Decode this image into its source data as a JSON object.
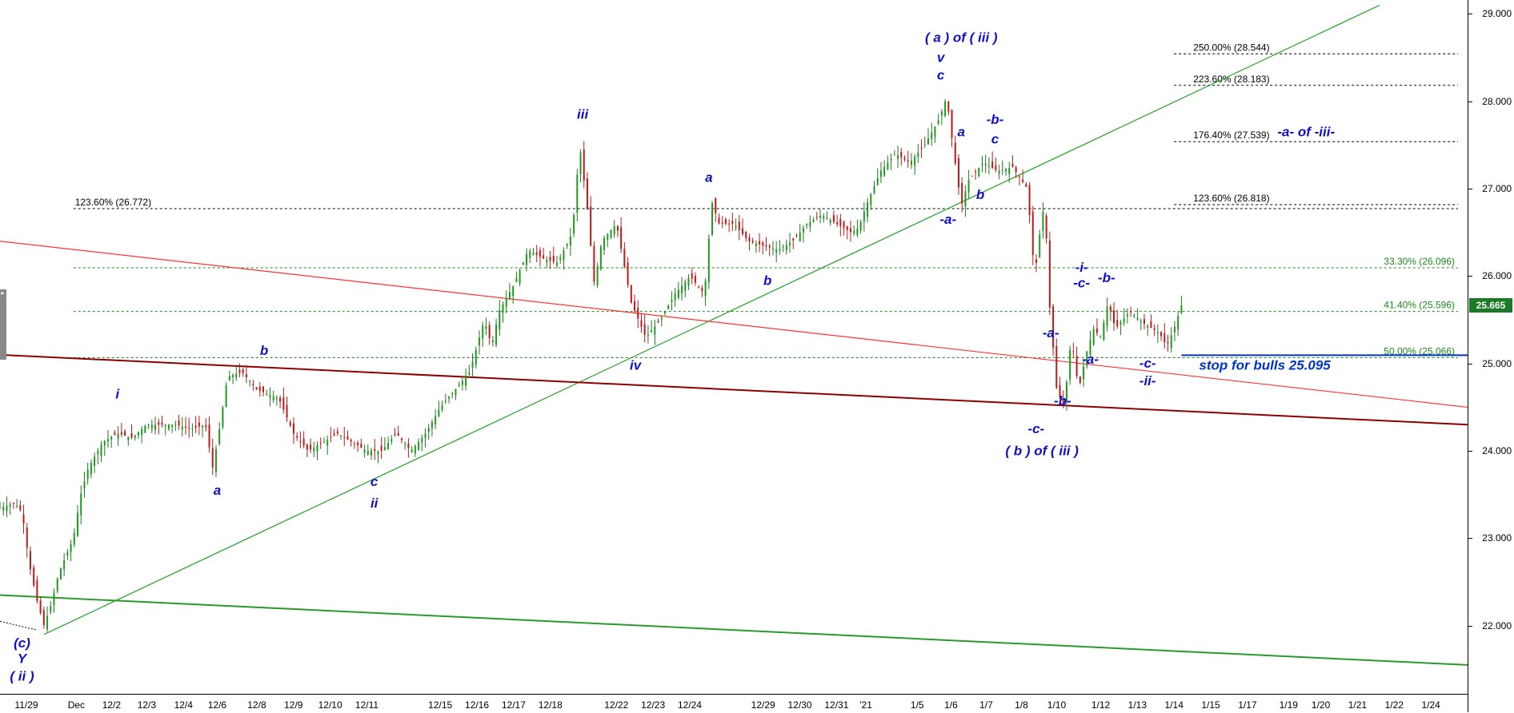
{
  "chart_data": {
    "type": "candlestick",
    "y_axis": {
      "range": [
        21.22,
        29.16
      ],
      "ticks": [
        "22.000",
        "23.000",
        "24.000",
        "25.000",
        "26.000",
        "27.000",
        "28.000",
        "29.000"
      ]
    },
    "x_axis": {
      "ticks": [
        "11/29",
        "Dec",
        "12/2",
        "12/3",
        "12/4",
        "12/6",
        "12/8",
        "12/9",
        "12/10",
        "12/11",
        "12/15",
        "12/16",
        "12/17",
        "12/18",
        "12/22",
        "12/23",
        "12/24",
        "12/29",
        "12/30",
        "12/31",
        "'21",
        "1/5",
        "1/6",
        "1/7",
        "1/8",
        "1/10",
        "1/12",
        "1/13",
        "1/14",
        "1/15",
        "1/17",
        "1/19",
        "1/20",
        "1/21",
        "1/22",
        "1/24"
      ]
    },
    "last_price": "25.665",
    "price_path": [
      [
        0,
        23.35
      ],
      [
        0.01,
        23.4
      ],
      [
        0.015,
        23.3
      ],
      [
        0.02,
        22.7
      ],
      [
        0.025,
        22.3
      ],
      [
        0.03,
        22.0
      ],
      [
        0.035,
        22.25
      ],
      [
        0.04,
        22.6
      ],
      [
        0.05,
        23.0
      ],
      [
        0.055,
        23.5
      ],
      [
        0.06,
        23.8
      ],
      [
        0.07,
        24.1
      ],
      [
        0.08,
        24.2
      ],
      [
        0.09,
        24.15
      ],
      [
        0.1,
        24.3
      ],
      [
        0.12,
        24.3
      ],
      [
        0.13,
        24.25
      ],
      [
        0.14,
        24.3
      ],
      [
        0.145,
        23.8
      ],
      [
        0.15,
        24.3
      ],
      [
        0.155,
        24.85
      ],
      [
        0.165,
        24.9
      ],
      [
        0.175,
        24.7
      ],
      [
        0.19,
        24.6
      ],
      [
        0.2,
        24.2
      ],
      [
        0.21,
        24.0
      ],
      [
        0.22,
        24.1
      ],
      [
        0.23,
        24.2
      ],
      [
        0.24,
        24.1
      ],
      [
        0.25,
        24.0
      ],
      [
        0.26,
        24.0
      ],
      [
        0.27,
        24.2
      ],
      [
        0.275,
        24.1
      ],
      [
        0.28,
        24.0
      ],
      [
        0.29,
        24.2
      ],
      [
        0.3,
        24.5
      ],
      [
        0.31,
        24.7
      ],
      [
        0.32,
        24.9
      ],
      [
        0.33,
        25.5
      ],
      [
        0.335,
        25.2
      ],
      [
        0.34,
        25.6
      ],
      [
        0.35,
        25.9
      ],
      [
        0.36,
        26.3
      ],
      [
        0.37,
        26.2
      ],
      [
        0.38,
        26.15
      ],
      [
        0.39,
        26.5
      ],
      [
        0.395,
        27.5
      ],
      [
        0.4,
        26.8
      ],
      [
        0.405,
        25.9
      ],
      [
        0.41,
        26.4
      ],
      [
        0.42,
        26.6
      ],
      [
        0.43,
        25.7
      ],
      [
        0.44,
        25.3
      ],
      [
        0.45,
        25.5
      ],
      [
        0.46,
        25.8
      ],
      [
        0.47,
        26.0
      ],
      [
        0.48,
        25.8
      ],
      [
        0.485,
        26.85
      ],
      [
        0.49,
        26.6
      ],
      [
        0.5,
        26.6
      ],
      [
        0.51,
        26.4
      ],
      [
        0.52,
        26.35
      ],
      [
        0.53,
        26.3
      ],
      [
        0.54,
        26.4
      ],
      [
        0.55,
        26.6
      ],
      [
        0.56,
        26.7
      ],
      [
        0.57,
        26.6
      ],
      [
        0.58,
        26.5
      ],
      [
        0.585,
        26.55
      ],
      [
        0.59,
        26.8
      ],
      [
        0.6,
        27.2
      ],
      [
        0.61,
        27.4
      ],
      [
        0.62,
        27.3
      ],
      [
        0.63,
        27.5
      ],
      [
        0.64,
        27.8
      ],
      [
        0.645,
        28.05
      ],
      [
        0.65,
        27.4
      ],
      [
        0.655,
        26.8
      ],
      [
        0.66,
        27.1
      ],
      [
        0.67,
        27.3
      ],
      [
        0.68,
        27.2
      ],
      [
        0.69,
        27.25
      ],
      [
        0.7,
        27.0
      ],
      [
        0.705,
        26.0
      ],
      [
        0.71,
        26.7
      ],
      [
        0.712,
        26.8
      ],
      [
        0.715,
        25.7
      ],
      [
        0.72,
        24.7
      ],
      [
        0.725,
        24.5
      ],
      [
        0.73,
        25.3
      ],
      [
        0.735,
        24.7
      ],
      [
        0.74,
        25.1
      ],
      [
        0.745,
        25.4
      ],
      [
        0.75,
        25.3
      ],
      [
        0.755,
        25.7
      ],
      [
        0.76,
        25.4
      ],
      [
        0.77,
        25.6
      ],
      [
        0.78,
        25.45
      ],
      [
        0.79,
        25.35
      ],
      [
        0.795,
        25.2
      ],
      [
        0.8,
        25.4
      ],
      [
        0.805,
        25.665
      ]
    ],
    "trendlines": [
      {
        "color": "#26a026",
        "from": [
          0.03,
          21.9
        ],
        "to": [
          0.94,
          29.1
        ]
      },
      {
        "color": "#ff3333",
        "from": [
          0.0,
          26.4
        ],
        "to": [
          1.0,
          24.5
        ]
      },
      {
        "color": "#8b0000",
        "from": [
          0.0,
          25.1
        ],
        "to": [
          1.0,
          24.3
        ]
      },
      {
        "color": "#2a9a2a",
        "from": [
          0.0,
          22.35
        ],
        "to": [
          1.0,
          21.55
        ]
      }
    ],
    "levels": [
      {
        "label": "123.60% (26.772)",
        "value": 26.772,
        "color": "#000000",
        "x_start": 0.05,
        "label_side": "left"
      },
      {
        "label": "250.00% (28.544)",
        "value": 28.544,
        "color": "#000000",
        "x_start": 0.8,
        "label_side": "right"
      },
      {
        "label": "223.60% (28.183)",
        "value": 28.183,
        "color": "#000000",
        "x_start": 0.8,
        "label_side": "right"
      },
      {
        "label": "176.40% (27.539)",
        "value": 27.539,
        "color": "#000000",
        "x_start": 0.8,
        "label_side": "right"
      },
      {
        "label": "123.60% (26.818)",
        "value": 26.818,
        "color": "#000000",
        "x_start": 0.8,
        "label_side": "right"
      },
      {
        "label": "33.30% (26.096)",
        "value": 26.096,
        "color": "#1a8a1a",
        "x_start": 0.05,
        "label_side": "far-right"
      },
      {
        "label": "41.40% (25.596)",
        "value": 25.596,
        "color": "#1a8a1a",
        "x_start": 0.05,
        "label_side": "far-right"
      },
      {
        "label": "50.00% (25.066)",
        "value": 25.066,
        "color": "#1a8a1a",
        "x_start": 0.05,
        "label_side": "far-right"
      }
    ],
    "stop_line": {
      "value": 25.095,
      "label": "stop for bulls 25.095",
      "color": "#0033cc"
    },
    "annotations": [
      {
        "text": "(c)",
        "x": 0.015,
        "y": 21.75
      },
      {
        "text": "Y",
        "x": 0.015,
        "y": 21.57
      },
      {
        "text": "( ii )",
        "x": 0.015,
        "y": 21.37
      },
      {
        "text": "i",
        "x": 0.08,
        "y": 24.6
      },
      {
        "text": "a",
        "x": 0.148,
        "y": 23.5
      },
      {
        "text": "b",
        "x": 0.18,
        "y": 25.1
      },
      {
        "text": "c",
        "x": 0.255,
        "y": 23.6
      },
      {
        "text": "ii",
        "x": 0.255,
        "y": 23.35
      },
      {
        "text": "iii",
        "x": 0.397,
        "y": 27.8
      },
      {
        "text": "iv",
        "x": 0.433,
        "y": 24.93
      },
      {
        "text": "a",
        "x": 0.483,
        "y": 27.08
      },
      {
        "text": "b",
        "x": 0.523,
        "y": 25.9
      },
      {
        "text": "( a ) of ( iii )",
        "x": 0.655,
        "y": 28.68
      },
      {
        "text": "v",
        "x": 0.641,
        "y": 28.45
      },
      {
        "text": "c",
        "x": 0.641,
        "y": 28.25
      },
      {
        "text": "a",
        "x": 0.655,
        "y": 27.6
      },
      {
        "text": "-b-",
        "x": 0.678,
        "y": 27.74
      },
      {
        "text": "c",
        "x": 0.678,
        "y": 27.52
      },
      {
        "text": "b",
        "x": 0.668,
        "y": 26.88
      },
      {
        "text": "-a-",
        "x": 0.646,
        "y": 26.6
      },
      {
        "text": "-i-",
        "x": 0.737,
        "y": 26.05
      },
      {
        "text": "-c-",
        "x": 0.737,
        "y": 25.87
      },
      {
        "text": "-b-",
        "x": 0.754,
        "y": 25.93
      },
      {
        "text": "-a-",
        "x": 0.716,
        "y": 25.3
      },
      {
        "text": "-a-",
        "x": 0.743,
        "y": 25.0
      },
      {
        "text": "-b-",
        "x": 0.724,
        "y": 24.52
      },
      {
        "text": "-c-",
        "x": 0.706,
        "y": 24.2
      },
      {
        "text": "( b ) of ( iii )",
        "x": 0.71,
        "y": 23.95
      },
      {
        "text": "-c-",
        "x": 0.782,
        "y": 24.95
      },
      {
        "text": "-ii-",
        "x": 0.782,
        "y": 24.75
      },
      {
        "text": "-a- of -iii-",
        "x": 0.89,
        "y": 27.6
      }
    ]
  }
}
